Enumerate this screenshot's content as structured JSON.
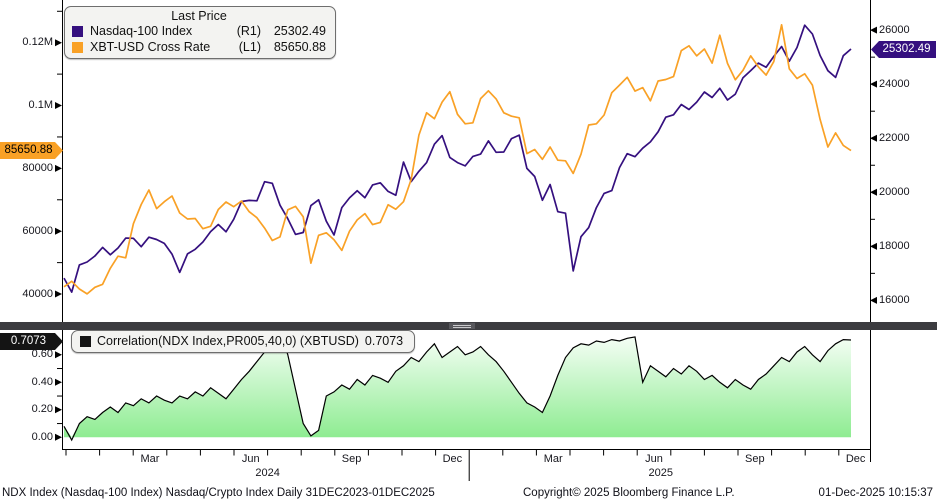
{
  "colors": {
    "ndx": "#35107F",
    "xbt": "#F9A126",
    "corr_line": "#000000",
    "corr_fill_top": "#FCFFFC",
    "corr_fill_bot": "#82EA86",
    "axis_text": "#16161d",
    "corr_badge_bg": "#141414"
  },
  "main_legend": {
    "title": "Last Price",
    "series": [
      {
        "name": "Nasdaq-100 Index",
        "axis": "(R1)",
        "value": "25302.49"
      },
      {
        "name": "XBT-USD Cross Rate",
        "axis": "(L1)",
        "value": "85650.88"
      }
    ]
  },
  "corr_legend": {
    "label": "Correlation(NDX Index,PR005,40,0) (XBTUSD)",
    "value": "0.7073"
  },
  "badges": {
    "xbt_last": "85650.88",
    "ndx_last": "25302.49",
    "corr_last": "0.7073"
  },
  "axes": {
    "left_main": {
      "ticks": [
        {
          "label": "40000",
          "value": 40000
        },
        {
          "label": "60000",
          "value": 60000
        },
        {
          "label": "80000",
          "value": 80000
        },
        {
          "label": "0.1M",
          "value": 100000
        },
        {
          "label": "0.12M",
          "value": 120000
        }
      ],
      "minor": [
        50000,
        70000,
        90000,
        110000,
        130000
      ]
    },
    "right_main": {
      "ticks": [
        {
          "label": "16000",
          "value": 16000
        },
        {
          "label": "18000",
          "value": 18000
        },
        {
          "label": "20000",
          "value": 20000
        },
        {
          "label": "22000",
          "value": 22000
        },
        {
          "label": "24000",
          "value": 24000
        },
        {
          "label": "26000",
          "value": 26000
        }
      ],
      "minor": [
        17000,
        19000,
        21000,
        23000,
        25000
      ]
    },
    "corr": {
      "ticks": [
        {
          "label": "0.00",
          "value": 0
        },
        {
          "label": "0.20",
          "value": 0.2
        },
        {
          "label": "0.40",
          "value": 0.4
        },
        {
          "label": "0.60",
          "value": 0.6
        }
      ],
      "minor": [
        0.1,
        0.3,
        0.5,
        0.7
      ]
    },
    "x": {
      "quarter_labels": [
        "Mar",
        "Jun",
        "Sep",
        "Dec",
        "Mar",
        "Jun",
        "Sep",
        "Dec"
      ],
      "year_labels": [
        "2024",
        "2025"
      ]
    }
  },
  "footer": {
    "left": "NDX Index (Nasdaq-100 Index) Nasdaq/Crypto Index Daily 31DEC2023-01DEC2025",
    "copyright": "Copyright© 2025 Bloomberg Finance L.P.",
    "timestamp": "01-Dec-2025 10:15:37"
  },
  "chart_data": [
    {
      "type": "line",
      "title": "Nasdaq/Crypto Index Daily 31DEC2023-01DEC2025",
      "x_range": [
        "31DEC2023",
        "01DEC2025"
      ],
      "left_ylim": [
        31100,
        132000
      ],
      "right_ylim": [
        15200,
        26930
      ],
      "legend_position": "top-left",
      "grid": false,
      "series": [
        {
          "name": "Nasdaq-100 Index",
          "axis": "R1",
          "last": 25302.49,
          "values": [
            16826,
            16306,
            17314,
            17421,
            17642,
            17962,
            17686,
            17937,
            18303,
            18298,
            17985,
            18339,
            18254,
            18108,
            17713,
            17037,
            17719,
            17891,
            18161,
            18546,
            18808,
            18536,
            19001,
            19660,
            19701,
            19683,
            20392,
            20331,
            19523,
            19024,
            18441,
            18513,
            19508,
            19721,
            18930,
            18421,
            19432,
            19791,
            20060,
            19800,
            20272,
            20352,
            20033,
            19890,
            21117,
            20394,
            20776,
            21100,
            21780,
            22097,
            21289,
            21100,
            20975,
            21326,
            21413,
            21900,
            21478,
            21491,
            21987,
            22115,
            20884,
            20584,
            19704,
            20287,
            19281,
            19225,
            17090,
            18358,
            18693,
            19432,
            19958,
            20061,
            20915,
            21427,
            21318,
            21631,
            21863,
            22237,
            22780,
            22867,
            23250,
            23065,
            23336,
            23712,
            23506,
            23847,
            23415,
            23631,
            24239,
            24504,
            24780,
            24626,
            25027,
            25395,
            24850,
            25358,
            26181,
            25858,
            25060,
            24500,
            24250,
            25055,
            25302.49
          ]
        },
        {
          "name": "XBT-USD Cross Rate",
          "axis": "L1",
          "last": 85650.88,
          "values": [
            42300,
            44050,
            41600,
            40050,
            42150,
            43100,
            48200,
            52050,
            51550,
            62400,
            68500,
            73100,
            67200,
            69400,
            71200,
            65800,
            63900,
            64050,
            60800,
            61550,
            66900,
            69300,
            67800,
            69600,
            66200,
            64300,
            61000,
            57050,
            58200,
            66800,
            67900,
            64600,
            49800,
            58700,
            59500,
            57300,
            53900,
            60000,
            63600,
            65600,
            62100,
            62800,
            68400,
            67000,
            69400,
            76500,
            90600,
            97700,
            95800,
            101100,
            104400,
            97200,
            94200,
            94500,
            102200,
            104700,
            102100,
            97700,
            96600,
            96100,
            84700,
            86000,
            82900,
            86800,
            82600,
            82400,
            78400,
            84500,
            93800,
            94200,
            97000,
            104100,
            106500,
            109000,
            104600,
            105700,
            101500,
            107800,
            108300,
            109200,
            117500,
            119000,
            115800,
            118000,
            113500,
            122400,
            113400,
            108200,
            111200,
            115800,
            112300,
            109700,
            114000,
            125700,
            111700,
            108600,
            110100,
            106500,
            95600,
            86800,
            91300,
            87300,
            85650.88
          ]
        }
      ]
    },
    {
      "type": "area",
      "name": "Correlation(NDX Index,PR005,40,0) (XBTUSD)",
      "last": 0.7073,
      "ylim": [
        -0.085,
        0.78
      ],
      "baseline": 0,
      "values": [
        0.08,
        -0.02,
        0.1,
        0.15,
        0.13,
        0.18,
        0.22,
        0.18,
        0.25,
        0.23,
        0.28,
        0.25,
        0.3,
        0.27,
        0.25,
        0.3,
        0.28,
        0.33,
        0.3,
        0.36,
        0.32,
        0.28,
        0.35,
        0.42,
        0.48,
        0.55,
        0.62,
        0.75,
        0.78,
        0.6,
        0.35,
        0.1,
        0.01,
        0.05,
        0.3,
        0.33,
        0.38,
        0.35,
        0.42,
        0.38,
        0.45,
        0.43,
        0.4,
        0.48,
        0.52,
        0.58,
        0.55,
        0.62,
        0.68,
        0.58,
        0.62,
        0.66,
        0.6,
        0.62,
        0.66,
        0.6,
        0.55,
        0.48,
        0.4,
        0.32,
        0.25,
        0.22,
        0.18,
        0.3,
        0.45,
        0.58,
        0.65,
        0.68,
        0.67,
        0.7,
        0.69,
        0.71,
        0.7,
        0.72,
        0.73,
        0.4,
        0.52,
        0.48,
        0.44,
        0.5,
        0.46,
        0.52,
        0.48,
        0.42,
        0.45,
        0.4,
        0.36,
        0.42,
        0.38,
        0.35,
        0.42,
        0.46,
        0.52,
        0.58,
        0.55,
        0.62,
        0.66,
        0.6,
        0.55,
        0.63,
        0.68,
        0.71,
        0.7073
      ]
    }
  ]
}
